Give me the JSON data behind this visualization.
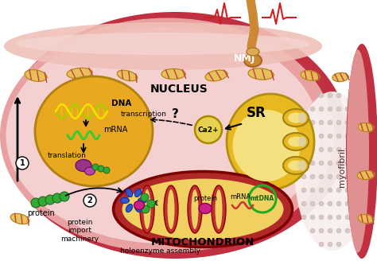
{
  "bg_outer_border": "#c03040",
  "bg_sarco_color": "#e8a0a0",
  "bg_inner_color": "#f2c8c8",
  "cell_pink": "#f5d0d0",
  "nucleus_color": "#e8a820",
  "nucleus_outline": "#b08010",
  "mito_outer_color": "#b02828",
  "mito_inner_color": "#f0d060",
  "sr_color": "#e8b820",
  "sr_outline": "#b09010",
  "ca_color": "#e8d050",
  "myofibril_dot_color": "#f8f0f0",
  "nerve_color": "#cc8833",
  "ecg_color": "#cc2222",
  "labels": {
    "nucleus": "NUCLEUS",
    "mito": "MITOCHONDRION",
    "sr": "SR",
    "nmj": "NMJ",
    "myofibril": "myofibril",
    "dna": "DNA",
    "transcription": "transcription",
    "mrna": "mRNA",
    "translation": "translation",
    "protein": "protein",
    "protein_mito": "protein",
    "mrna_mito": "mRNA",
    "mtdna": "mtDNA",
    "protein_import": "protein\nimport\nmachinery",
    "holoenzyme": "holoenzyme assembly",
    "ca2": "Ca2+",
    "circle1": "1",
    "circle2": "2"
  },
  "small_mitos": [
    [
      45,
      95,
      28,
      14,
      10
    ],
    [
      100,
      92,
      32,
      13,
      -5
    ],
    [
      160,
      95,
      26,
      12,
      15
    ],
    [
      218,
      93,
      30,
      13,
      0
    ],
    [
      272,
      95,
      28,
      13,
      -10
    ],
    [
      328,
      93,
      32,
      14,
      5
    ],
    [
      390,
      95,
      24,
      12,
      10
    ],
    [
      428,
      97,
      20,
      11,
      -5
    ],
    [
      25,
      275,
      24,
      12,
      15
    ],
    [
      460,
      160,
      20,
      11,
      5
    ],
    [
      460,
      220,
      22,
      11,
      -5
    ],
    [
      460,
      275,
      20,
      11,
      10
    ]
  ]
}
